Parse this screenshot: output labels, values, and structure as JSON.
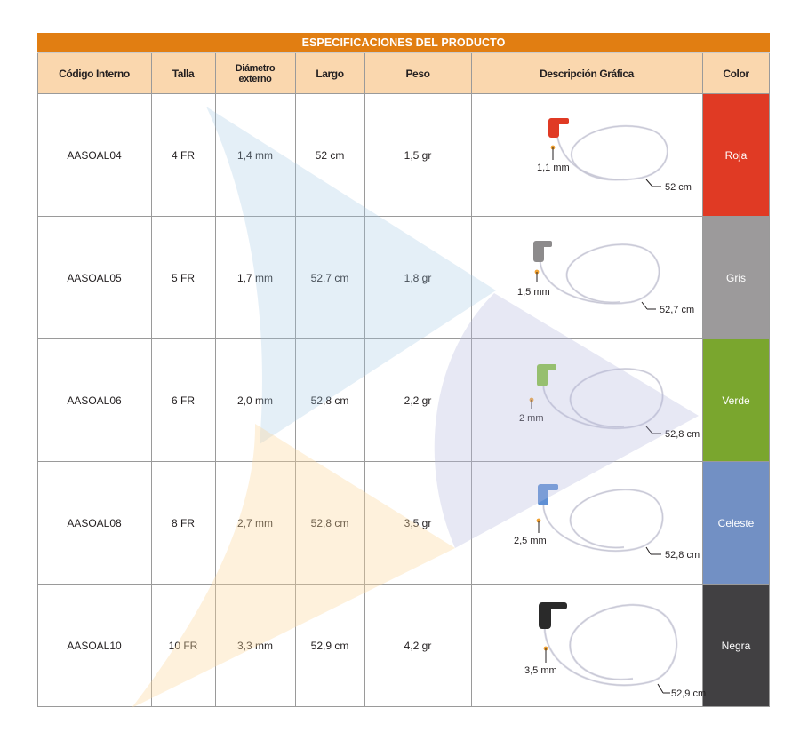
{
  "title": "ESPECIFICACIONES DEL PRODUCTO",
  "headers": {
    "codigo": "Código Interno",
    "talla": "Talla",
    "diametro_1": "Diámetro",
    "diametro_2": "externo",
    "largo": "Largo",
    "peso": "Peso",
    "descripcion": "Descripción Gráfica",
    "color": "Color"
  },
  "rows": [
    {
      "codigo": "AASOAL04",
      "talla": "4 FR",
      "diametro": "1,4 mm",
      "largo": "52 cm",
      "peso": "1,5 gr",
      "tip_label": "1,1 mm",
      "length_label": "52 cm",
      "color": "Roja",
      "color_hex": "#e03a24",
      "tip_hex": "#e03a24"
    },
    {
      "codigo": "AASOAL05",
      "talla": "5 FR",
      "diametro": "1,7 mm",
      "largo": "52,7 cm",
      "peso": "1,8 gr",
      "tip_label": "1,5 mm",
      "length_label": "52,7 cm",
      "color": "Gris",
      "color_hex": "#9c9a9b",
      "tip_hex": "#8d8b8c"
    },
    {
      "codigo": "AASOAL06",
      "talla": "6 FR",
      "diametro": "2,0 mm",
      "largo": "52,8 cm",
      "peso": "2,2 gr",
      "tip_label": "2 mm",
      "length_label": "52,8 cm",
      "color": "Verde",
      "color_hex": "#7aa62e",
      "tip_hex": "#86c23a"
    },
    {
      "codigo": "AASOAL08",
      "talla": "8 FR",
      "diametro": "2,7 mm",
      "largo": "52,8 cm",
      "peso": "3,5 gr",
      "tip_label": "2,5 mm",
      "length_label": "52,8 cm",
      "color": "Celeste",
      "color_hex": "#7290c4",
      "tip_hex": "#5e8fd4"
    },
    {
      "codigo": "AASOAL10",
      "talla": "10 FR",
      "diametro": "3,3 mm",
      "largo": "52,9 cm",
      "peso": "4,2 gr",
      "tip_label": "3,5 mm",
      "length_label": "52,9 cm",
      "color": "Negra",
      "color_hex": "#414042",
      "tip_hex": "#2a2a2a"
    }
  ],
  "accent_colors": {
    "title_bar": "#e17e12",
    "header_bg": "#fad7ae",
    "grid": "#9a9a9a",
    "marker": "#f0a030"
  }
}
